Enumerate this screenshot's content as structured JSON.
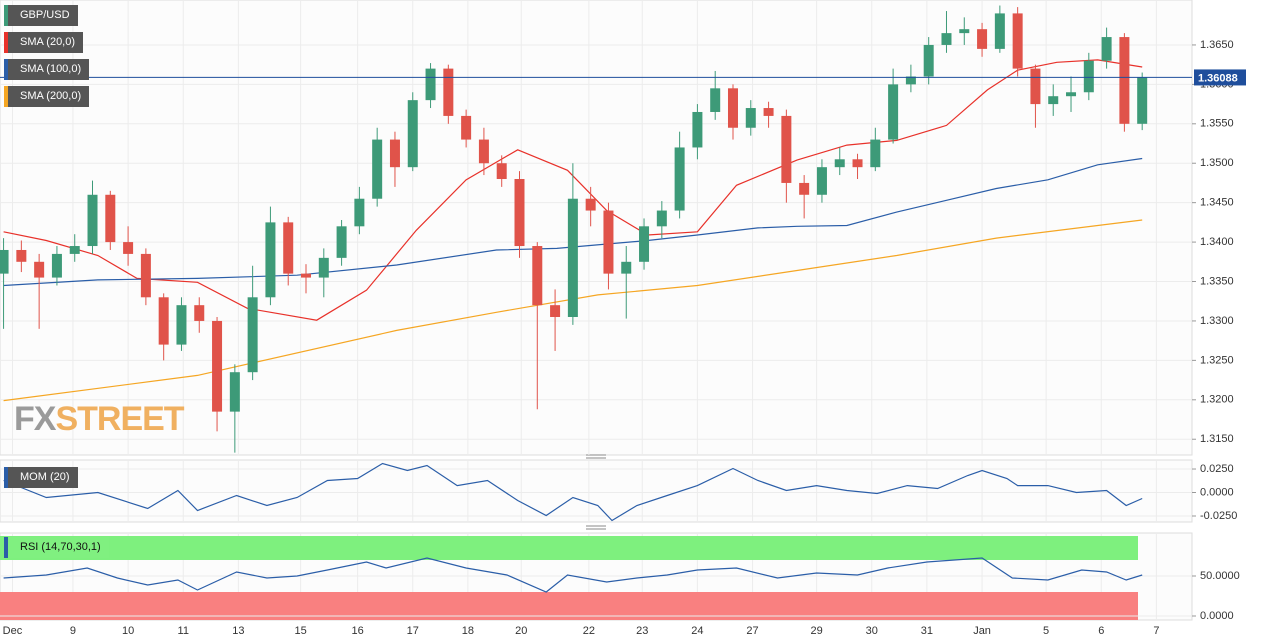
{
  "chart_data": [
    {
      "type": "candlestick",
      "title": "GBP/USD",
      "watermark": [
        "FX",
        "STREET"
      ],
      "colors": {
        "up": "#3d9a78",
        "down": "#e0534a"
      },
      "x": [
        0,
        1,
        2,
        3,
        4,
        5,
        6,
        7,
        8,
        9,
        10,
        11,
        12,
        13,
        14,
        15,
        16,
        17,
        18,
        19,
        20,
        21,
        22,
        23,
        24,
        25,
        26,
        27,
        28,
        29,
        30,
        31,
        32,
        33,
        34,
        35,
        36,
        37,
        38,
        39,
        40,
        41,
        42,
        43,
        44,
        45,
        46,
        47,
        48,
        49,
        50,
        51,
        52,
        53,
        54,
        55,
        56,
        57,
        58,
        59,
        60,
        61,
        62,
        63,
        64
      ],
      "open": [
        1.336,
        1.339,
        1.3375,
        1.3355,
        1.3385,
        1.3395,
        1.346,
        1.34,
        1.3385,
        1.333,
        1.327,
        1.332,
        1.33,
        1.3185,
        1.3235,
        1.333,
        1.3425,
        1.336,
        1.3355,
        1.338,
        1.342,
        1.3455,
        1.353,
        1.3495,
        1.358,
        1.362,
        1.356,
        1.353,
        1.35,
        1.348,
        1.3395,
        1.332,
        1.3305,
        1.3455,
        1.344,
        1.336,
        1.3375,
        1.342,
        1.344,
        1.352,
        1.3565,
        1.3595,
        1.3545,
        1.357,
        1.356,
        1.3475,
        1.346,
        1.3495,
        1.3505,
        1.3495,
        1.353,
        1.36,
        1.361,
        1.365,
        1.3665,
        1.367,
        1.3645,
        1.369,
        1.362,
        1.3575,
        1.3585,
        1.359,
        1.363,
        1.366,
        1.355
      ],
      "high": [
        1.3405,
        1.3402,
        1.3385,
        1.3395,
        1.341,
        1.3478,
        1.3465,
        1.342,
        1.3392,
        1.3335,
        1.333,
        1.333,
        1.3305,
        1.3245,
        1.337,
        1.3445,
        1.3432,
        1.3372,
        1.3392,
        1.3428,
        1.347,
        1.3545,
        1.354,
        1.359,
        1.3627,
        1.3625,
        1.3568,
        1.3545,
        1.351,
        1.349,
        1.34,
        1.334,
        1.35,
        1.347,
        1.345,
        1.3395,
        1.343,
        1.3452,
        1.354,
        1.3575,
        1.3617,
        1.36,
        1.358,
        1.3578,
        1.3568,
        1.3485,
        1.3505,
        1.352,
        1.3512,
        1.3545,
        1.362,
        1.3625,
        1.366,
        1.3693,
        1.3685,
        1.3678,
        1.37,
        1.3698,
        1.3625,
        1.36,
        1.361,
        1.364,
        1.3672,
        1.3665,
        1.3615
      ],
      "low": [
        1.329,
        1.3362,
        1.329,
        1.3345,
        1.3375,
        1.3385,
        1.339,
        1.337,
        1.332,
        1.325,
        1.3262,
        1.3285,
        1.316,
        1.3133,
        1.3225,
        1.332,
        1.3345,
        1.3335,
        1.333,
        1.337,
        1.341,
        1.3445,
        1.347,
        1.349,
        1.357,
        1.355,
        1.352,
        1.3485,
        1.347,
        1.338,
        1.3188,
        1.3262,
        1.3295,
        1.342,
        1.334,
        1.3303,
        1.3365,
        1.3405,
        1.343,
        1.3505,
        1.3555,
        1.353,
        1.3535,
        1.3545,
        1.345,
        1.343,
        1.345,
        1.3485,
        1.348,
        1.349,
        1.3525,
        1.359,
        1.36,
        1.364,
        1.365,
        1.3635,
        1.364,
        1.361,
        1.3545,
        1.356,
        1.3565,
        1.358,
        1.362,
        1.354,
        1.3542
      ],
      "close": [
        1.339,
        1.3375,
        1.3355,
        1.3385,
        1.3395,
        1.346,
        1.34,
        1.3385,
        1.333,
        1.327,
        1.332,
        1.33,
        1.3185,
        1.3235,
        1.333,
        1.3425,
        1.336,
        1.3355,
        1.338,
        1.342,
        1.3455,
        1.353,
        1.3495,
        1.358,
        1.362,
        1.356,
        1.353,
        1.35,
        1.348,
        1.3395,
        1.332,
        1.3305,
        1.3455,
        1.344,
        1.336,
        1.3375,
        1.342,
        1.344,
        1.352,
        1.3565,
        1.3595,
        1.3545,
        1.357,
        1.356,
        1.3475,
        1.346,
        1.3495,
        1.3505,
        1.3495,
        1.353,
        1.36,
        1.361,
        1.365,
        1.3665,
        1.367,
        1.3645,
        1.369,
        1.362,
        1.3575,
        1.3585,
        1.359,
        1.363,
        1.366,
        1.355,
        1.36088
      ],
      "overlays": [
        {
          "name": "SMA (20,0)",
          "color": "#e8312a",
          "x": [
            0,
            2.4,
            5.3,
            7.5,
            10.9,
            13.7,
            17.6,
            20.4,
            23.2,
            26.0,
            28.9,
            31.7,
            33.9,
            36.2,
            39.0,
            41.2,
            44.6,
            47.4,
            50.2,
            53.0,
            55.3,
            57.0,
            59.2,
            61.5,
            64
          ],
          "values": [
            1.3413,
            1.3402,
            1.3383,
            1.3354,
            1.3349,
            1.3316,
            1.3301,
            1.3339,
            1.3415,
            1.3479,
            1.3517,
            1.3491,
            1.344,
            1.3409,
            1.3413,
            1.3472,
            1.3504,
            1.3523,
            1.3529,
            1.3548,
            1.3593,
            1.3618,
            1.3628,
            1.3631,
            1.3622
          ]
        },
        {
          "name": "SMA (100,0)",
          "color": "#2b5ea8",
          "x": [
            0,
            5.3,
            10.9,
            16.5,
            22.1,
            27.7,
            31.1,
            36.2,
            39.0,
            42.4,
            44.6,
            47.4,
            50.2,
            53.0,
            55.8,
            58.7,
            61.5,
            64
          ],
          "values": [
            1.3345,
            1.3352,
            1.3354,
            1.3358,
            1.3371,
            1.339,
            1.3392,
            1.3402,
            1.3409,
            1.3418,
            1.342,
            1.3421,
            1.3438,
            1.3453,
            1.3468,
            1.3479,
            1.3498,
            1.3506
          ]
        },
        {
          "name": "SMA (200,0)",
          "color": "#f5a623",
          "x": [
            0,
            10.9,
            22.1,
            27.7,
            33.4,
            39.0,
            44.6,
            50.2,
            55.8,
            61.5,
            64
          ],
          "values": [
            1.3199,
            1.3231,
            1.3288,
            1.3311,
            1.3333,
            1.3345,
            1.3364,
            1.3383,
            1.3405,
            1.3421,
            1.3428
          ]
        }
      ],
      "last_price": 1.36088,
      "last_price_color": "#1f4e9c",
      "xlim": [
        -0.2,
        66.8
      ],
      "xticks": [
        {
          "value": 0.5,
          "label": "Dec"
        },
        {
          "value": 3.9,
          "label": "9"
        },
        {
          "value": 7.0,
          "label": "10"
        },
        {
          "value": 10.1,
          "label": "11"
        },
        {
          "value": 13.2,
          "label": "13"
        },
        {
          "value": 16.7,
          "label": "15"
        },
        {
          "value": 19.9,
          "label": "16"
        },
        {
          "value": 23.0,
          "label": "17"
        },
        {
          "value": 26.1,
          "label": "18"
        },
        {
          "value": 29.1,
          "label": "20"
        },
        {
          "value": 32.9,
          "label": "22"
        },
        {
          "value": 35.9,
          "label": "23"
        },
        {
          "value": 39.0,
          "label": "24"
        },
        {
          "value": 42.1,
          "label": "27"
        },
        {
          "value": 45.7,
          "label": "29"
        },
        {
          "value": 48.8,
          "label": "30"
        },
        {
          "value": 51.9,
          "label": "31"
        },
        {
          "value": 55.0,
          "label": "Jan"
        },
        {
          "value": 58.6,
          "label": "5"
        },
        {
          "value": 61.7,
          "label": "6"
        },
        {
          "value": 64.8,
          "label": "7"
        }
      ],
      "ylim": [
        1.313,
        1.3707
      ],
      "yticks": [
        {
          "value": 1.315,
          "label": "1.3150"
        },
        {
          "value": 1.32,
          "label": "1.3200"
        },
        {
          "value": 1.325,
          "label": "1.3250"
        },
        {
          "value": 1.33,
          "label": "1.3300"
        },
        {
          "value": 1.335,
          "label": "1.3350"
        },
        {
          "value": 1.34,
          "label": "1.3400"
        },
        {
          "value": 1.345,
          "label": "1.3450"
        },
        {
          "value": 1.35,
          "label": "1.3500"
        },
        {
          "value": 1.355,
          "label": "1.3550"
        },
        {
          "value": 1.36,
          "label": "1.3600"
        },
        {
          "value": 1.365,
          "label": "1.3650"
        }
      ],
      "grid": true
    },
    {
      "type": "line",
      "series": [
        {
          "name": "MOM (20)",
          "color": "#2b5ea8",
          "x": [
            0,
            2.4,
            5.3,
            8.1,
            9.8,
            10.9,
            13.1,
            14.8,
            16.5,
            18.2,
            19.9,
            21.3,
            22.7,
            23.8,
            25.5,
            27.2,
            28.9,
            30.5,
            32.0,
            33.4,
            34.2,
            35.6,
            37.3,
            39.0,
            41.0,
            42.4,
            44.0,
            45.7,
            47.4,
            49.1,
            50.8,
            52.5,
            54.2,
            55.0,
            56.4,
            57.0,
            58.7,
            60.3,
            62.0,
            63.1,
            64
          ],
          "values": [
            0.0128,
            -0.0053,
            0,
            -0.017,
            0.0021,
            -0.0192,
            -0.0032,
            -0.0138,
            -0.0053,
            0.0128,
            0.0149,
            0.0309,
            0.0234,
            0.0287,
            0.0074,
            0.0128,
            -0.0085,
            -0.0245,
            -0.0053,
            -0.0138,
            -0.0298,
            -0.0138,
            -0.0032,
            0.0074,
            0.0255,
            0.0128,
            0.0021,
            0.0074,
            0.0021,
            -0.0011,
            0.0074,
            0.0043,
            0.0181,
            0.0234,
            0.0149,
            0.0074,
            0.0074,
            0,
            0.0021,
            -0.0138,
            -0.0064
          ]
        }
      ],
      "ylim": [
        -0.0314,
        0.0346
      ],
      "yticks": [
        {
          "value": 0.025,
          "label": "0.0250"
        },
        {
          "value": 0,
          "label": "0.0000"
        },
        {
          "value": -0.025,
          "label": "-0.0250"
        }
      ]
    },
    {
      "type": "line",
      "series": [
        {
          "name": "RSI (14,70,30,1)",
          "color": "#2b5ea8",
          "x": [
            0,
            2.4,
            4.7,
            6.4,
            8.1,
            9.8,
            10.9,
            13.1,
            14.8,
            16.5,
            18.2,
            20.4,
            21.5,
            23.8,
            26.0,
            28.3,
            30.5,
            31.7,
            33.9,
            35.6,
            37.3,
            39.0,
            41.2,
            43.5,
            45.7,
            48.0,
            49.7,
            51.9,
            55.0,
            56.7,
            58.7,
            60.6,
            62.0,
            63.1,
            64
          ],
          "values": [
            47.5,
            51.25,
            60,
            47.5,
            38.75,
            45,
            32.5,
            55,
            47.5,
            50,
            57.5,
            67.5,
            60,
            72.5,
            60,
            51.25,
            30,
            51.25,
            42.5,
            47.5,
            51.25,
            57.5,
            60,
            47.5,
            53.75,
            51.25,
            60,
            67.5,
            72.5,
            47.5,
            45,
            57.5,
            55,
            45,
            51.25
          ]
        }
      ],
      "bands": {
        "overbought": 70,
        "oversold": 30,
        "overbought_color": "#7ef07e",
        "oversold_color": "#f98080"
      },
      "ylim": [
        -5,
        103.75
      ],
      "yticks": [
        {
          "value": 50,
          "label": "50.0000"
        },
        {
          "value": 0,
          "label": "0.0000"
        }
      ]
    }
  ]
}
